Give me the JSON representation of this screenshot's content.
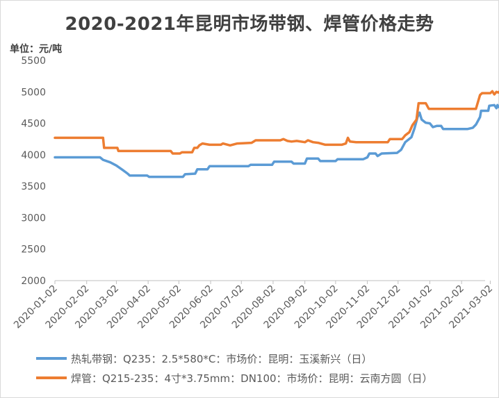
{
  "title": "2020-2021年昆明市场带钢、焊管价格走势",
  "unit_label": "单位：元/吨",
  "chart_data": {
    "type": "line",
    "title": "2020-2021年昆明市场带钢、焊管价格走势",
    "ylabel": "单位：元/吨",
    "ylim": [
      2000,
      5500
    ],
    "yticks": [
      2000,
      2500,
      3000,
      3500,
      4000,
      4500,
      5000,
      5500
    ],
    "xlim": [
      "2020-01-02",
      "2021-03-12"
    ],
    "xticks": [
      "2020-01-02",
      "2020-02-02",
      "2020-03-02",
      "2020-04-02",
      "2020-05-02",
      "2020-06-02",
      "2020-07-02",
      "2020-08-02",
      "2020-09-02",
      "2020-10-02",
      "2020-11-02",
      "2020-12-02",
      "2021-01-02",
      "2021-02-02",
      "2021-03-02"
    ],
    "grid": false,
    "legend_position": "bottom",
    "series": [
      {
        "name": "热轧带钢：Q235：2.5*580*C：市场价：昆明：玉溪新兴（日）",
        "color": "#5b9bd5",
        "points": [
          [
            "2020-01-02",
            3960
          ],
          [
            "2020-02-15",
            3960
          ],
          [
            "2020-02-18",
            3920
          ],
          [
            "2020-02-25",
            3880
          ],
          [
            "2020-03-02",
            3830
          ],
          [
            "2020-03-08",
            3760
          ],
          [
            "2020-03-13",
            3700
          ],
          [
            "2020-03-15",
            3670
          ],
          [
            "2020-04-01",
            3670
          ],
          [
            "2020-04-03",
            3650
          ],
          [
            "2020-05-06",
            3650
          ],
          [
            "2020-05-08",
            3690
          ],
          [
            "2020-05-18",
            3700
          ],
          [
            "2020-05-20",
            3770
          ],
          [
            "2020-05-30",
            3770
          ],
          [
            "2020-06-01",
            3820
          ],
          [
            "2020-07-09",
            3820
          ],
          [
            "2020-07-11",
            3840
          ],
          [
            "2020-08-01",
            3840
          ],
          [
            "2020-08-03",
            3890
          ],
          [
            "2020-08-20",
            3890
          ],
          [
            "2020-08-22",
            3860
          ],
          [
            "2020-09-02",
            3860
          ],
          [
            "2020-09-04",
            3940
          ],
          [
            "2020-09-15",
            3940
          ],
          [
            "2020-09-17",
            3900
          ],
          [
            "2020-10-02",
            3900
          ],
          [
            "2020-10-04",
            3930
          ],
          [
            "2020-10-29",
            3930
          ],
          [
            "2020-11-02",
            3960
          ],
          [
            "2020-11-04",
            4020
          ],
          [
            "2020-11-10",
            4020
          ],
          [
            "2020-11-12",
            3980
          ],
          [
            "2020-11-16",
            4020
          ],
          [
            "2020-12-01",
            4030
          ],
          [
            "2020-12-05",
            4080
          ],
          [
            "2020-12-09",
            4200
          ],
          [
            "2020-12-15",
            4280
          ],
          [
            "2020-12-18",
            4420
          ],
          [
            "2020-12-21",
            4600
          ],
          [
            "2020-12-23",
            4670
          ],
          [
            "2020-12-25",
            4560
          ],
          [
            "2020-12-29",
            4510
          ],
          [
            "2021-01-02",
            4500
          ],
          [
            "2021-01-05",
            4440
          ],
          [
            "2021-01-09",
            4460
          ],
          [
            "2021-01-13",
            4460
          ],
          [
            "2021-01-15",
            4410
          ],
          [
            "2021-02-08",
            4410
          ],
          [
            "2021-02-13",
            4430
          ],
          [
            "2021-02-16",
            4480
          ],
          [
            "2021-02-20",
            4600
          ],
          [
            "2021-02-21",
            4700
          ],
          [
            "2021-02-28",
            4700
          ],
          [
            "2021-03-01",
            4780
          ],
          [
            "2021-03-06",
            4790
          ],
          [
            "2021-03-08",
            4740
          ],
          [
            "2021-03-09",
            4790
          ],
          [
            "2021-03-10",
            4760
          ],
          [
            "2021-03-12",
            4750
          ]
        ]
      },
      {
        "name": "焊管：Q215-235：4寸*3.75mm：DN100：市场价：昆明：云南方圆（日）",
        "color": "#ed7d31",
        "points": [
          [
            "2020-01-02",
            4270
          ],
          [
            "2020-02-18",
            4270
          ],
          [
            "2020-02-19",
            4110
          ],
          [
            "2020-03-03",
            4110
          ],
          [
            "2020-03-04",
            4060
          ],
          [
            "2020-04-24",
            4060
          ],
          [
            "2020-04-26",
            4020
          ],
          [
            "2020-05-03",
            4020
          ],
          [
            "2020-05-05",
            4040
          ],
          [
            "2020-05-15",
            4040
          ],
          [
            "2020-05-17",
            4110
          ],
          [
            "2020-05-20",
            4110
          ],
          [
            "2020-05-22",
            4150
          ],
          [
            "2020-05-25",
            4180
          ],
          [
            "2020-06-01",
            4160
          ],
          [
            "2020-06-12",
            4160
          ],
          [
            "2020-06-14",
            4180
          ],
          [
            "2020-06-21",
            4150
          ],
          [
            "2020-06-28",
            4180
          ],
          [
            "2020-07-12",
            4190
          ],
          [
            "2020-07-16",
            4230
          ],
          [
            "2020-08-09",
            4230
          ],
          [
            "2020-08-12",
            4250
          ],
          [
            "2020-08-16",
            4220
          ],
          [
            "2020-08-20",
            4210
          ],
          [
            "2020-08-25",
            4220
          ],
          [
            "2020-09-02",
            4200
          ],
          [
            "2020-09-05",
            4230
          ],
          [
            "2020-09-10",
            4200
          ],
          [
            "2020-09-15",
            4190
          ],
          [
            "2020-09-22",
            4160
          ],
          [
            "2020-10-08",
            4160
          ],
          [
            "2020-10-12",
            4180
          ],
          [
            "2020-10-14",
            4270
          ],
          [
            "2020-10-16",
            4210
          ],
          [
            "2020-10-22",
            4200
          ],
          [
            "2020-11-22",
            4200
          ],
          [
            "2020-11-24",
            4250
          ],
          [
            "2020-12-06",
            4250
          ],
          [
            "2020-12-09",
            4310
          ],
          [
            "2020-12-13",
            4360
          ],
          [
            "2020-12-16",
            4470
          ],
          [
            "2020-12-20",
            4560
          ],
          [
            "2020-12-22",
            4820
          ],
          [
            "2020-12-29",
            4820
          ],
          [
            "2021-01-01",
            4730
          ],
          [
            "2021-02-16",
            4730
          ],
          [
            "2021-02-20",
            4950
          ],
          [
            "2021-02-22",
            4980
          ],
          [
            "2021-03-02",
            4980
          ],
          [
            "2021-03-04",
            5010
          ],
          [
            "2021-03-06",
            4960
          ],
          [
            "2021-03-08",
            5000
          ],
          [
            "2021-03-10",
            4990
          ],
          [
            "2021-03-12",
            5020
          ]
        ]
      }
    ]
  }
}
